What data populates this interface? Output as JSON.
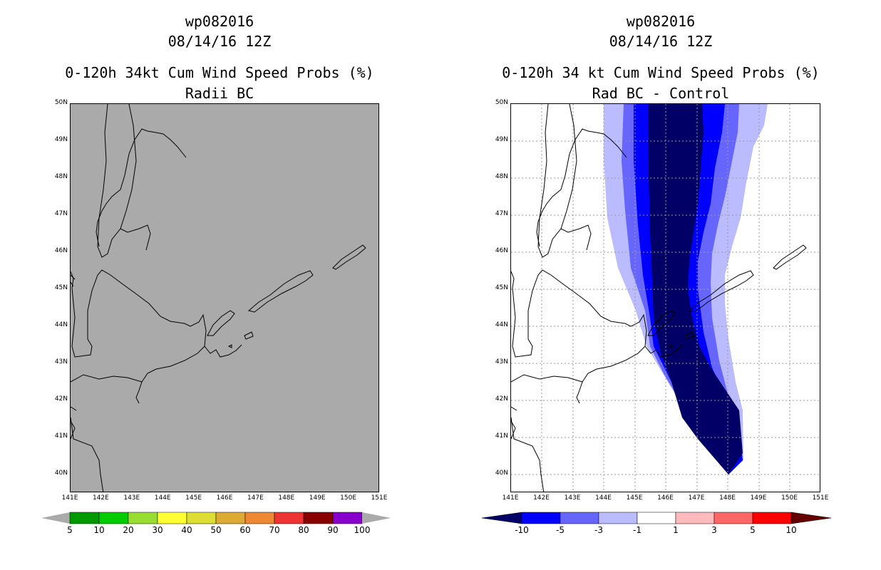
{
  "left_panel": {
    "title_line1": "wp082016",
    "title_line2": "08/14/16 12Z",
    "title_line3": "0-120h 34kt Cum Wind Speed Probs (%)",
    "title_line4": "Radii BC",
    "background_color": "#aaaaaa"
  },
  "right_panel": {
    "title_line1": "wp082016",
    "title_line2": "08/14/16 12Z",
    "title_line3": "0-120h 34 kt Cum Wind Speed Probs (%)",
    "title_line4": "Rad BC - Control",
    "background_color": "#ffffff"
  },
  "axes": {
    "lat_labels": [
      "50N",
      "49N",
      "48N",
      "47N",
      "46N",
      "45N",
      "44N",
      "43N",
      "42N",
      "41N",
      "40N"
    ],
    "lon_labels": [
      "141E",
      "142E",
      "143E",
      "144E",
      "145E",
      "146E",
      "147E",
      "148E",
      "149E",
      "150E",
      "151E"
    ]
  },
  "left_colorbar": {
    "labels": [
      "5",
      "10",
      "20",
      "30",
      "40",
      "50",
      "60",
      "70",
      "80",
      "90",
      "100"
    ],
    "colors": [
      "#009900",
      "#00cc00",
      "#99dd33",
      "#ffff33",
      "#dddd33",
      "#ddaa33",
      "#ee8833",
      "#ee3333",
      "#880000",
      "#8800cc"
    ]
  },
  "right_colorbar": {
    "labels": [
      "-10",
      "-5",
      "-3",
      "-1",
      "1",
      "3",
      "5",
      "10"
    ],
    "colors": [
      "#000066",
      "#0000ff",
      "#6666ff",
      "#bbbbff",
      "#ffffff",
      "#ffbbbb",
      "#ff6666",
      "#ff0000",
      "#660000"
    ]
  },
  "shading_colors": {
    "level1": "#bbbbff",
    "level2": "#6666ff",
    "level3": "#0000ff",
    "level4": "#000066"
  }
}
